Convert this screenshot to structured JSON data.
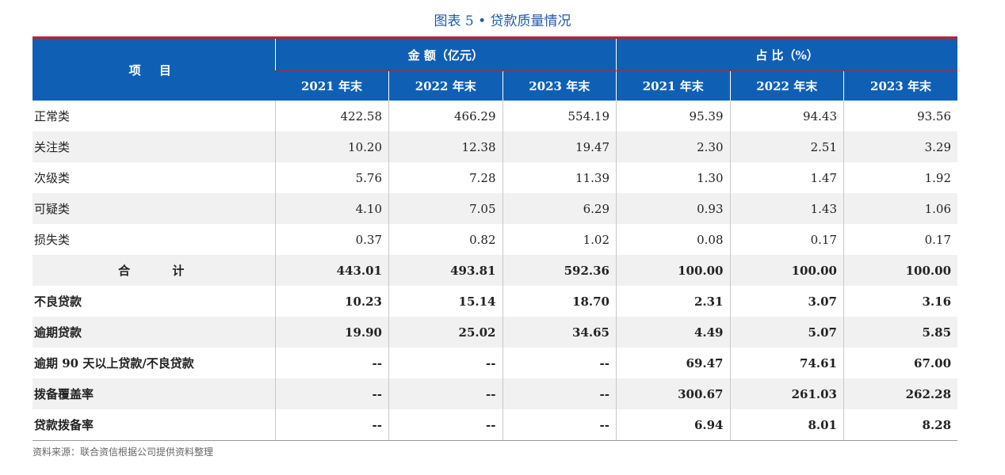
{
  "title": "图表 5 • 贷款质量情况",
  "header": {
    "item_label": "项 目",
    "amount_group": "金 额（亿元）",
    "ratio_group": "占 比（%）",
    "years": [
      "2021 年末",
      "2022 年末",
      "2023 年末",
      "2021 年末",
      "2022 年末",
      "2023 年末"
    ]
  },
  "rows": [
    {
      "label": "正常类",
      "values": [
        "422.58",
        "466.29",
        "554.19",
        "95.39",
        "94.43",
        "93.56"
      ]
    },
    {
      "label": "关注类",
      "values": [
        "10.20",
        "12.38",
        "19.47",
        "2.30",
        "2.51",
        "3.29"
      ]
    },
    {
      "label": "次级类",
      "values": [
        "5.76",
        "7.28",
        "11.39",
        "1.30",
        "1.47",
        "1.92"
      ]
    },
    {
      "label": "可疑类",
      "values": [
        "4.10",
        "7.05",
        "6.29",
        "0.93",
        "1.43",
        "1.06"
      ]
    },
    {
      "label": "损失类",
      "values": [
        "0.37",
        "0.82",
        "1.02",
        "0.08",
        "0.17",
        "0.17"
      ]
    },
    {
      "label": "合 计",
      "values": [
        "443.01",
        "493.81",
        "592.36",
        "100.00",
        "100.00",
        "100.00"
      ]
    },
    {
      "label": "不良贷款",
      "values": [
        "10.23",
        "15.14",
        "18.70",
        "2.31",
        "3.07",
        "3.16"
      ]
    },
    {
      "label": "逾期贷款",
      "values": [
        "19.90",
        "25.02",
        "34.65",
        "4.49",
        "5.07",
        "5.85"
      ]
    },
    {
      "label": "逾期 90 天以上贷款/不良贷款",
      "values": [
        "--",
        "--",
        "--",
        "69.47",
        "74.61",
        "67.00"
      ]
    },
    {
      "label": "拨备覆盖率",
      "values": [
        "--",
        "--",
        "--",
        "300.67",
        "261.03",
        "262.28"
      ]
    },
    {
      "label": "贷款拨备率",
      "values": [
        "--",
        "--",
        "--",
        "6.94",
        "8.01",
        "8.28"
      ]
    }
  ],
  "source": "资料来源：联合资信根据公司提供资料整理"
}
